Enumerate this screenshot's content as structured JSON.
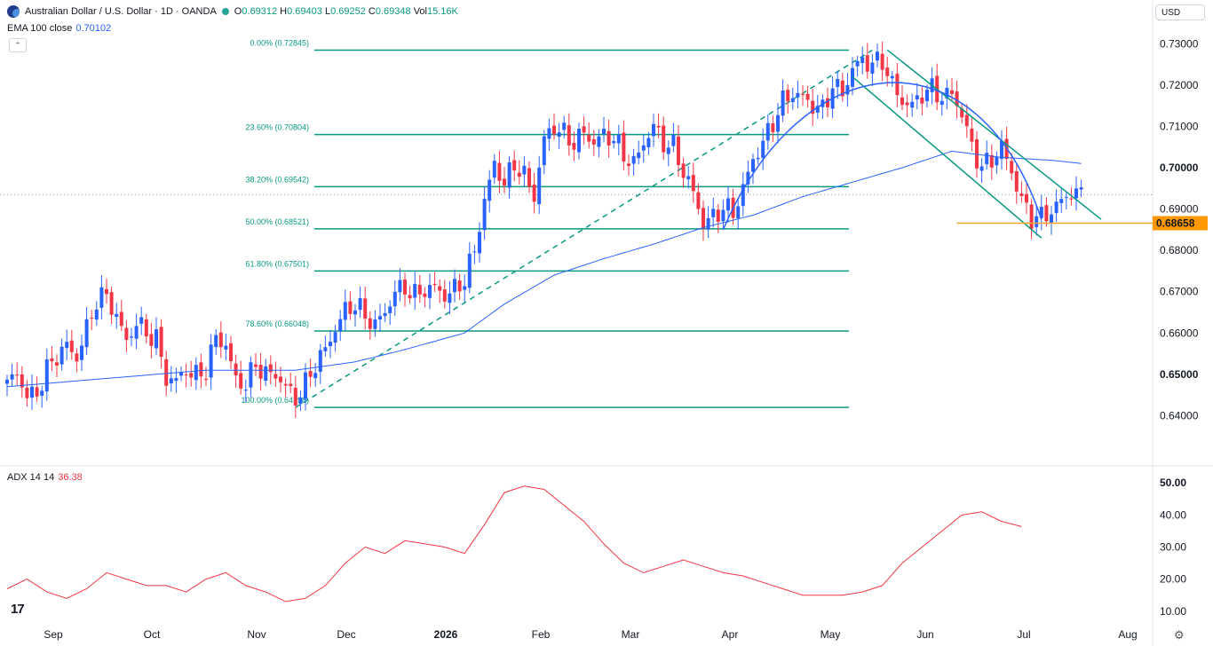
{
  "header": {
    "symbol": "Australian Dollar / U.S. Dollar · 1D · OANDA",
    "o_label": "O",
    "o": "0.69312",
    "h_label": "H",
    "h": "0.69403",
    "l_label": "L",
    "l": "0.69252",
    "c_label": "C",
    "c": "0.69348",
    "vol_label": "Vol",
    "vol": "15.16K"
  },
  "ema": {
    "label": "EMA 100 close",
    "value": "0.70102"
  },
  "currency": "USD",
  "adx": {
    "label": "ADX 14 14",
    "value": "36.38"
  },
  "logo": "17",
  "colors": {
    "up": "#2962ff",
    "down": "#f23645",
    "fib": "#089981",
    "ema": "#2962ff",
    "adx": "#f23645",
    "support": "#f5a623",
    "price_tag": "#ff9800"
  },
  "chart_data": [
    {
      "type": "candlestick",
      "symbol": "AUD/USD",
      "ylim": [
        0.636,
        0.732
      ],
      "y_ticks": [
        "0.73000",
        "0.72000",
        "0.71000",
        "0.70000",
        "0.69000",
        "0.68000",
        "0.67000",
        "0.66000",
        "0.65000",
        "0.64000"
      ],
      "bold_ticks": [
        "0.70000",
        "0.65000"
      ],
      "x_labels": [
        "Sep",
        "Oct",
        "Nov",
        "Dec",
        "2026",
        "Feb",
        "Mar",
        "Apr",
        "May",
        "Jun",
        "Jul",
        "Aug"
      ],
      "bold_x_labels": [
        "2026"
      ],
      "fib_levels": [
        {
          "label": "0.00% (0.72845)",
          "value": 0.72845
        },
        {
          "label": "23.60% (0.70804)",
          "value": 0.70804
        },
        {
          "label": "38.20% (0.69542)",
          "value": 0.69542
        },
        {
          "label": "50.00% (0.68521)",
          "value": 0.68521
        },
        {
          "label": "61.80% (0.67501)",
          "value": 0.67501
        },
        {
          "label": "78.60% (0.66048)",
          "value": 0.66048
        },
        {
          "label": "100.00% (0.64198)",
          "value": 0.64198
        }
      ],
      "support_level": {
        "label": "0.68658",
        "value": 0.68658
      },
      "last_price": 0.69348,
      "close_path": [
        [
          0,
          0.6475
        ],
        [
          2,
          0.6505
        ],
        [
          4,
          0.6445
        ],
        [
          6,
          0.6455
        ],
        [
          8,
          0.651
        ],
        [
          10,
          0.6545
        ],
        [
          12,
          0.657
        ],
        [
          14,
          0.654
        ],
        [
          16,
          0.661
        ],
        [
          18,
          0.668
        ],
        [
          20,
          0.669
        ],
        [
          22,
          0.664
        ],
        [
          24,
          0.658
        ],
        [
          26,
          0.6625
        ],
        [
          28,
          0.66
        ],
        [
          30,
          0.6585
        ],
        [
          32,
          0.649
        ],
        [
          34,
          0.6485
        ],
        [
          36,
          0.651
        ],
        [
          38,
          0.6495
        ],
        [
          40,
          0.651
        ],
        [
          42,
          0.659
        ],
        [
          44,
          0.657
        ],
        [
          46,
          0.6485
        ],
        [
          48,
          0.6475
        ],
        [
          50,
          0.6525
        ],
        [
          52,
          0.65
        ],
        [
          54,
          0.65
        ],
        [
          56,
          0.647
        ],
        [
          58,
          0.644
        ],
        [
          60,
          0.6475
        ],
        [
          62,
          0.6525
        ],
        [
          64,
          0.656
        ],
        [
          66,
          0.661
        ],
        [
          68,
          0.6655
        ],
        [
          70,
          0.667
        ],
        [
          72,
          0.664
        ],
        [
          74,
          0.662
        ],
        [
          76,
          0.665
        ],
        [
          78,
          0.67
        ],
        [
          80,
          0.671
        ],
        [
          82,
          0.669
        ],
        [
          84,
          0.6705
        ],
        [
          86,
          0.671
        ],
        [
          88,
          0.669
        ],
        [
          90,
          0.6705
        ],
        [
          92,
          0.673
        ],
        [
          94,
          0.68
        ],
        [
          96,
          0.692
        ],
        [
          98,
          0.701
        ],
        [
          100,
          0.696
        ],
        [
          102,
          0.701
        ],
        [
          104,
          0.698
        ],
        [
          106,
          0.693
        ],
        [
          108,
          0.707
        ],
        [
          110,
          0.71
        ],
        [
          112,
          0.708
        ],
        [
          114,
          0.706
        ],
        [
          116,
          0.7085
        ],
        [
          118,
          0.706
        ],
        [
          120,
          0.708
        ],
        [
          122,
          0.707
        ],
        [
          124,
          0.703
        ],
        [
          126,
          0.701
        ],
        [
          128,
          0.706
        ],
        [
          130,
          0.71
        ],
        [
          132,
          0.706
        ],
        [
          134,
          0.705
        ],
        [
          136,
          0.699
        ],
        [
          138,
          0.694
        ],
        [
          140,
          0.6865
        ],
        [
          142,
          0.688
        ],
        [
          144,
          0.6905
        ],
        [
          146,
          0.689
        ],
        [
          148,
          0.695
        ],
        [
          150,
          0.702
        ],
        [
          152,
          0.706
        ],
        [
          154,
          0.711
        ],
        [
          156,
          0.716
        ],
        [
          158,
          0.718
        ],
        [
          160,
          0.717
        ],
        [
          162,
          0.715
        ],
        [
          164,
          0.714
        ],
        [
          166,
          0.72
        ],
        [
          168,
          0.718
        ],
        [
          170,
          0.724
        ],
        [
          172,
          0.726
        ],
        [
          174,
          0.725
        ],
        [
          176,
          0.726
        ],
        [
          178,
          0.72
        ],
        [
          180,
          0.716
        ],
        [
          182,
          0.715
        ],
        [
          184,
          0.718
        ],
        [
          186,
          0.719
        ],
        [
          188,
          0.717
        ],
        [
          190,
          0.718
        ],
        [
          192,
          0.713
        ],
        [
          194,
          0.705
        ],
        [
          196,
          0.7
        ],
        [
          198,
          0.702
        ],
        [
          200,
          0.705
        ],
        [
          202,
          0.699
        ],
        [
          204,
          0.692
        ],
        [
          206,
          0.688
        ],
        [
          208,
          0.688
        ],
        [
          210,
          0.6895
        ],
        [
          212,
          0.692
        ],
        [
          214,
          0.694
        ],
        [
          216,
          0.6935
        ]
      ],
      "ema_path": [
        [
          0,
          0.647
        ],
        [
          20,
          0.649
        ],
        [
          40,
          0.651
        ],
        [
          58,
          0.651
        ],
        [
          70,
          0.653
        ],
        [
          80,
          0.656
        ],
        [
          92,
          0.66
        ],
        [
          100,
          0.667
        ],
        [
          110,
          0.674
        ],
        [
          120,
          0.678
        ],
        [
          130,
          0.6815
        ],
        [
          140,
          0.6855
        ],
        [
          150,
          0.6885
        ],
        [
          160,
          0.693
        ],
        [
          170,
          0.6965
        ],
        [
          180,
          0.7
        ],
        [
          190,
          0.704
        ],
        [
          200,
          0.7025
        ],
        [
          210,
          0.7018
        ],
        [
          216,
          0.70102
        ]
      ],
      "channel_lines": [
        {
          "from": [
            170,
            0.722
          ],
          "to": [
            208,
            0.683
          ]
        },
        {
          "from": [
            177,
            0.7285
          ],
          "to": [
            220,
            0.6875
          ]
        }
      ],
      "fib_anchor_line": {
        "from": [
          58,
          0.64198
        ],
        "to": [
          174,
          0.72845
        ]
      }
    },
    {
      "type": "line",
      "name": "ADX 14 14",
      "ylim": [
        8,
        52
      ],
      "y_ticks": [
        "50.00",
        "40.00",
        "30.00",
        "20.00",
        "10.00"
      ],
      "bold_ticks": [
        "50.00"
      ],
      "values": [
        [
          0,
          17
        ],
        [
          4,
          20
        ],
        [
          8,
          16
        ],
        [
          12,
          14
        ],
        [
          16,
          17
        ],
        [
          20,
          22
        ],
        [
          24,
          20
        ],
        [
          28,
          18
        ],
        [
          32,
          18
        ],
        [
          36,
          16
        ],
        [
          40,
          20
        ],
        [
          44,
          22
        ],
        [
          48,
          18
        ],
        [
          52,
          16
        ],
        [
          56,
          13
        ],
        [
          60,
          14
        ],
        [
          64,
          18
        ],
        [
          68,
          25
        ],
        [
          72,
          30
        ],
        [
          76,
          28
        ],
        [
          80,
          32
        ],
        [
          84,
          31
        ],
        [
          88,
          30
        ],
        [
          92,
          28
        ],
        [
          96,
          37
        ],
        [
          100,
          47
        ],
        [
          104,
          49
        ],
        [
          108,
          48
        ],
        [
          112,
          43
        ],
        [
          116,
          38
        ],
        [
          120,
          31
        ],
        [
          124,
          25
        ],
        [
          128,
          22
        ],
        [
          132,
          24
        ],
        [
          136,
          26
        ],
        [
          140,
          24
        ],
        [
          144,
          22
        ],
        [
          148,
          21
        ],
        [
          152,
          19
        ],
        [
          156,
          17
        ],
        [
          160,
          15
        ],
        [
          164,
          15
        ],
        [
          168,
          15
        ],
        [
          172,
          16
        ],
        [
          176,
          18
        ],
        [
          180,
          25
        ],
        [
          184,
          30
        ],
        [
          188,
          35
        ],
        [
          192,
          40
        ],
        [
          196,
          41
        ],
        [
          200,
          38
        ],
        [
          204,
          36.38
        ]
      ]
    }
  ]
}
